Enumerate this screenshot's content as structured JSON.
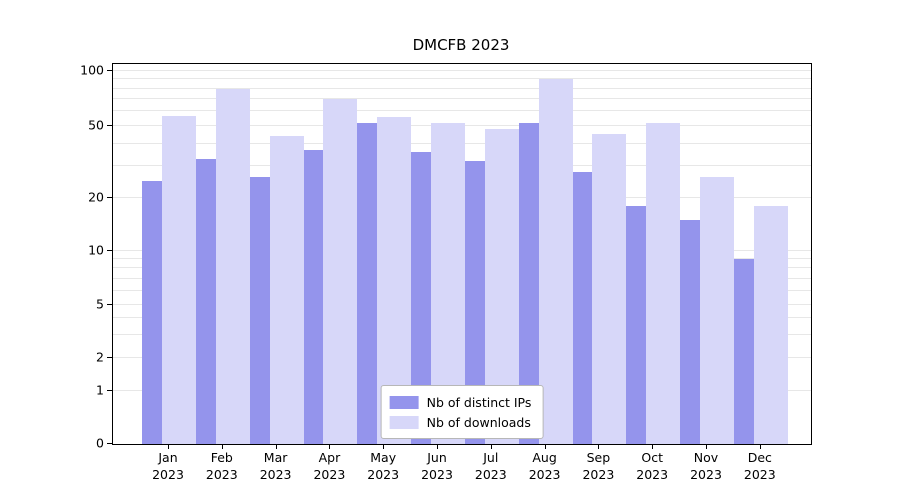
{
  "title": "DMCFB 2023",
  "axes": {
    "y_tick_labels": [
      "0",
      "1",
      "2",
      "5",
      "10",
      "20",
      "50",
      "100"
    ],
    "x_tick_year": "2023"
  },
  "chart_data": {
    "type": "bar",
    "title": "DMCFB 2023",
    "categories": [
      "Jan",
      "Feb",
      "Mar",
      "Apr",
      "May",
      "Jun",
      "Jul",
      "Aug",
      "Sep",
      "Oct",
      "Nov",
      "Dec"
    ],
    "category_year": "2023",
    "series": [
      {
        "name": "Nb of distinct IPs",
        "color": "#9494ec",
        "values": [
          25,
          33,
          26,
          37,
          52,
          36,
          32,
          52,
          28,
          18,
          15,
          9
        ]
      },
      {
        "name": "Nb of downloads",
        "color": "#d7d7f9",
        "values": [
          57,
          80,
          44,
          70,
          56,
          52,
          48,
          90,
          45,
          52,
          26,
          18
        ]
      }
    ],
    "yscale": "symlog",
    "y_ticks": [
      0,
      1,
      2,
      5,
      10,
      20,
      50,
      100
    ],
    "minor_gridline_values": [
      1,
      2,
      3,
      4,
      5,
      6,
      7,
      8,
      9,
      10,
      20,
      30,
      40,
      50,
      60,
      70,
      80,
      90,
      100
    ],
    "ylim": [
      0,
      105
    ],
    "grid": "horizontal",
    "legend_position": "lower center"
  }
}
